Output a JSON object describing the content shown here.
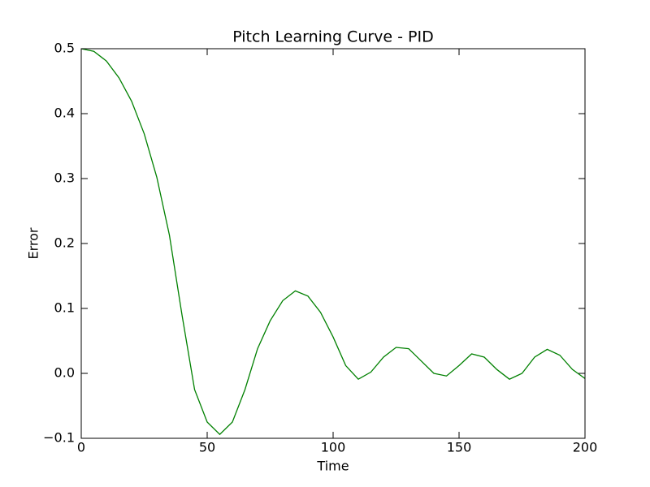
{
  "chart_data": {
    "type": "line",
    "title": "Pitch Learning Curve - PID",
    "x_label": "Time",
    "y_label": "Error",
    "x": [
      0,
      5,
      10,
      15,
      20,
      25,
      30,
      35,
      40,
      45,
      50,
      55,
      60,
      65,
      70,
      75,
      80,
      85,
      90,
      95,
      100,
      105,
      110,
      115,
      120,
      125,
      130,
      135,
      140,
      145,
      150,
      155,
      160,
      165,
      170,
      175,
      180,
      185,
      190,
      195,
      200
    ],
    "series": [
      {
        "color": "#008000",
        "values": [
          0.5,
          0.496,
          0.481,
          0.455,
          0.419,
          0.369,
          0.302,
          0.213,
          0.09,
          -0.025,
          -0.075,
          -0.094,
          -0.075,
          -0.025,
          0.038,
          0.081,
          0.112,
          0.127,
          0.119,
          0.094,
          0.056,
          0.012,
          -0.009,
          0.002,
          0.025,
          0.04,
          0.038,
          0.019,
          0.0,
          -0.004,
          0.012,
          0.03,
          0.025,
          0.006,
          -0.009,
          0.0,
          0.025,
          0.037,
          0.028,
          0.006,
          -0.008
        ]
      }
    ],
    "xlim": [
      0,
      200
    ],
    "xticks": [
      0,
      50,
      100,
      150,
      200
    ],
    "ylim": [
      -0.1,
      0.5
    ],
    "yticks": [
      {
        "value": -0.1,
        "label": "−0.1"
      },
      {
        "value": 0,
        "label": "0.0"
      },
      0.1,
      0.2,
      0.3,
      0.4,
      0.5
    ],
    "grid": false
  }
}
